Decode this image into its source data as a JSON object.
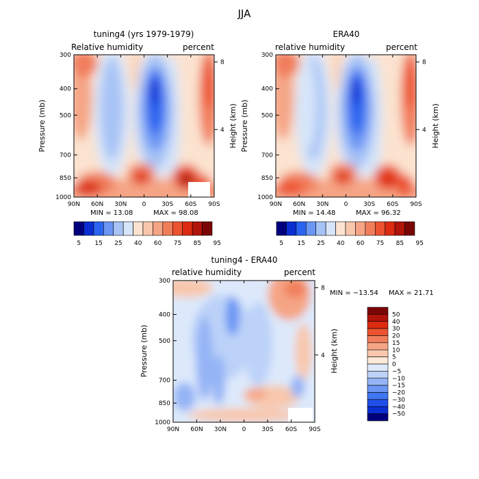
{
  "figure": {
    "title": "JJA"
  },
  "colors": {
    "abs": [
      "#00007d",
      "#0b2ed2",
      "#2a64f0",
      "#6b96f4",
      "#a7c3f5",
      "#d6e5f9",
      "#fbe3d0",
      "#f8c7ac",
      "#f5a585",
      "#f17e5b",
      "#ec5330",
      "#dc2b10",
      "#b0140a",
      "#7a0505"
    ],
    "diff": [
      "#00007d",
      "#0b2ed2",
      "#1f4fe8",
      "#3f76f2",
      "#6b96f4",
      "#94b4f6",
      "#bcd2f8",
      "#dde9fb",
      "#fde9d8",
      "#f8c7ac",
      "#f5a585",
      "#f17e5b",
      "#ec5330",
      "#dc2b10",
      "#b0140a",
      "#7a0505"
    ]
  },
  "chart_data": [
    {
      "type": "heatmap",
      "title": "tuning4 (yrs 1979-1979)",
      "left_label": "Relative humidity",
      "right_label": "percent",
      "ylabel": "Pressure (mb)",
      "y2label": "Height (km)",
      "x_ticks": [
        "90N",
        "60N",
        "30N",
        "0",
        "30S",
        "60S",
        "90S"
      ],
      "y_ticks": [
        "300",
        "400",
        "500",
        "700",
        "850",
        "1000"
      ],
      "y2_ticks": [
        "8",
        "4"
      ],
      "levels": [
        "5",
        "15",
        "25",
        "40",
        "60",
        "75",
        "85",
        "95"
      ],
      "min_label": "MIN =   13.08",
      "max_label": "MAX =   98.08",
      "min": 13.08,
      "max": 98.08,
      "xlim": [
        90,
        -90
      ],
      "ylim": [
        1000,
        300
      ],
      "log_y": true
    },
    {
      "type": "heatmap",
      "title": "ERA40",
      "left_label": "relative humidity",
      "right_label": "percent",
      "ylabel": "Pressure (mb)",
      "y2label": "Height (km)",
      "x_ticks": [
        "90N",
        "60N",
        "30N",
        "0",
        "30S",
        "60S",
        "90S"
      ],
      "y_ticks": [
        "300",
        "400",
        "500",
        "700",
        "850",
        "1000"
      ],
      "y2_ticks": [
        "8",
        "4"
      ],
      "levels": [
        "5",
        "15",
        "25",
        "40",
        "60",
        "75",
        "85",
        "95"
      ],
      "min_label": "MIN =   14.48",
      "max_label": "MAX =   96.32",
      "min": 14.48,
      "max": 96.32,
      "xlim": [
        90,
        -90
      ],
      "ylim": [
        1000,
        300
      ],
      "log_y": true
    },
    {
      "type": "heatmap",
      "title": "tuning4 - ERA40",
      "left_label": "relative humidity",
      "right_label": "percent",
      "ylabel": "Pressure (mb)",
      "y2label": "Height (km)",
      "x_ticks": [
        "90N",
        "60N",
        "30N",
        "0",
        "30S",
        "60S",
        "90S"
      ],
      "y_ticks": [
        "300",
        "400",
        "500",
        "700",
        "850",
        "1000"
      ],
      "y2_ticks": [
        "8",
        "4"
      ],
      "levels": [
        "50",
        "40",
        "30",
        "20",
        "15",
        "10",
        "5",
        "0",
        "−5",
        "−10",
        "−15",
        "−20",
        "−30",
        "−40",
        "−50"
      ],
      "min_label": "MIN = −13.54",
      "max_label": "MAX =   21.71",
      "min": -13.54,
      "max": 21.71,
      "xlim": [
        90,
        -90
      ],
      "ylim": [
        1000,
        300
      ],
      "log_y": true
    }
  ]
}
